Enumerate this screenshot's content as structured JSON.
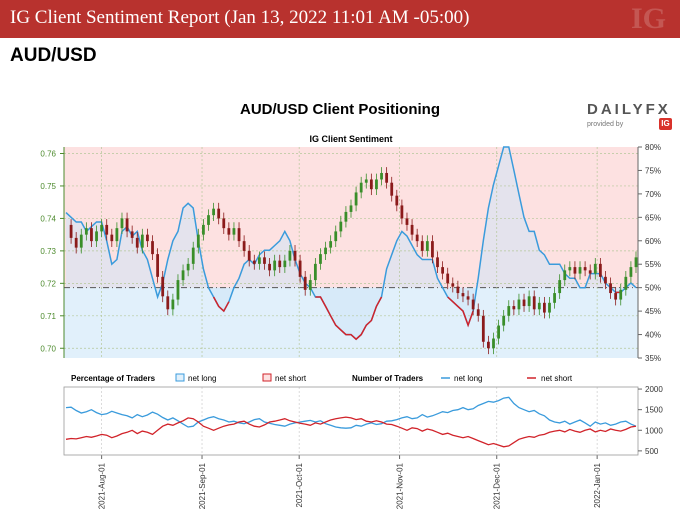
{
  "header": {
    "title": "IG Client Sentiment Report (Jan 13, 2022 11:01 AM -05:00)",
    "pair": "AUD/USD"
  },
  "logo": {
    "brand": "DAILYFX",
    "provided_by": "provided by",
    "ig": "IG"
  },
  "chart_data": [
    {
      "type": "line",
      "title": "AUD/USD Client Positioning",
      "subtitle": "IG Client Sentiment",
      "price_axis": {
        "ylim": [
          0.697,
          0.762
        ],
        "ticks": [
          "0.70",
          "0.71",
          "0.72",
          "0.73",
          "0.74",
          "0.75",
          "0.76"
        ]
      },
      "pct_axis": {
        "ylim": [
          35,
          80
        ],
        "ticks": [
          "35%",
          "40%",
          "45%",
          "50%",
          "55%",
          "60%",
          "65%",
          "70%",
          "75%",
          "80%"
        ]
      },
      "x_ticks": [
        "2021-Aug-01",
        "2021-Sep-01",
        "2021-Oct-01",
        "2021-Nov-01",
        "2021-Dec-01",
        "2022-Jan-01"
      ],
      "x_range": [
        "2021-07-21",
        "2022-01-13"
      ],
      "series": [
        {
          "name": "AUD/USD",
          "kind": "candlestick",
          "values": [
            0.738,
            0.734,
            0.731,
            0.735,
            0.737,
            0.733,
            0.736,
            0.738,
            0.735,
            0.733,
            0.737,
            0.74,
            0.736,
            0.734,
            0.731,
            0.735,
            0.733,
            0.729,
            0.722,
            0.716,
            0.712,
            0.715,
            0.721,
            0.724,
            0.726,
            0.731,
            0.735,
            0.738,
            0.741,
            0.743,
            0.74,
            0.737,
            0.735,
            0.737,
            0.733,
            0.73,
            0.727,
            0.726,
            0.728,
            0.726,
            0.724,
            0.727,
            0.725,
            0.727,
            0.73,
            0.727,
            0.722,
            0.718,
            0.721,
            0.726,
            0.729,
            0.731,
            0.733,
            0.736,
            0.739,
            0.742,
            0.744,
            0.748,
            0.751,
            0.752,
            0.749,
            0.752,
            0.754,
            0.751,
            0.747,
            0.744,
            0.74,
            0.738,
            0.735,
            0.733,
            0.73,
            0.733,
            0.728,
            0.725,
            0.723,
            0.72,
            0.719,
            0.717,
            0.716,
            0.715,
            0.712,
            0.71,
            0.702,
            0.7,
            0.703,
            0.707,
            0.71,
            0.713,
            0.712,
            0.715,
            0.713,
            0.716,
            0.712,
            0.714,
            0.711,
            0.714,
            0.717,
            0.721,
            0.724,
            0.725,
            0.723,
            0.725,
            0.724,
            0.723,
            0.726,
            0.722,
            0.72,
            0.717,
            0.715,
            0.718,
            0.722,
            0.725,
            0.728
          ]
        },
        {
          "name": "net long",
          "kind": "percent",
          "values": [
            66,
            65,
            64,
            64,
            62,
            63,
            64,
            64,
            60,
            55,
            56,
            62,
            63,
            61,
            62,
            58,
            56,
            52,
            48,
            51,
            56,
            60,
            62,
            67,
            68,
            67,
            60,
            54,
            50,
            48,
            46,
            45,
            47,
            50,
            52,
            55,
            56,
            55,
            57,
            58,
            58,
            59,
            60,
            62,
            60,
            56,
            53,
            51,
            50,
            48,
            48,
            46,
            44,
            42,
            41,
            40,
            40,
            39,
            40,
            42,
            43,
            46,
            48,
            54,
            57,
            60,
            62,
            61,
            59,
            57,
            56,
            56,
            56,
            52,
            50,
            48,
            47,
            46,
            45,
            42,
            45,
            52,
            60,
            67,
            72,
            76,
            80,
            80,
            75,
            70,
            65,
            62,
            62,
            58,
            57,
            55,
            55,
            55,
            53,
            52,
            52,
            50,
            50,
            53,
            53,
            53,
            51,
            50,
            49,
            49,
            50,
            51,
            50
          ]
        },
        {
          "name": "net short",
          "kind": "percent",
          "values": [
            34,
            35,
            36,
            36,
            38,
            37,
            36,
            36,
            40,
            45,
            44,
            38,
            37,
            39,
            38,
            42,
            44,
            48,
            52,
            49,
            44,
            40,
            38,
            33,
            32,
            33,
            40,
            46,
            50,
            52,
            54,
            55,
            53,
            50,
            48,
            45,
            44,
            45,
            43,
            42,
            42,
            41,
            40,
            38,
            40,
            44,
            47,
            49,
            50,
            52,
            52,
            54,
            56,
            58,
            59,
            60,
            60,
            61,
            60,
            58,
            57,
            54,
            52,
            46,
            43,
            40,
            38,
            39,
            41,
            43,
            44,
            44,
            44,
            48,
            50,
            52,
            53,
            54,
            55,
            58,
            55,
            48,
            40,
            33,
            28,
            24,
            20,
            20,
            25,
            30,
            35,
            38,
            38,
            42,
            43,
            45,
            45,
            45,
            47,
            48,
            48,
            50,
            50,
            47,
            47,
            47,
            49,
            50,
            51,
            51,
            50,
            49,
            50
          ]
        }
      ],
      "reference_line_pct": 50
    },
    {
      "type": "line",
      "legend": {
        "pct_label": "Percentage of Traders",
        "net_long": "net long",
        "net_short": "net short",
        "num_label": "Number of Traders"
      },
      "y_ticks": [
        "500",
        "1000",
        "1500",
        "2000"
      ],
      "ylim": [
        400,
        2050
      ],
      "series": [
        {
          "name": "net long",
          "values": [
            1550,
            1560,
            1480,
            1420,
            1450,
            1500,
            1430,
            1380,
            1400,
            1460,
            1420,
            1380,
            1350,
            1300,
            1380,
            1330,
            1370,
            1440,
            1390,
            1310,
            1250,
            1300,
            1230,
            1150,
            1080,
            1100,
            1200,
            1250,
            1300,
            1330,
            1280,
            1250,
            1200,
            1220,
            1180,
            1160,
            1200,
            1260,
            1280,
            1200,
            1170,
            1140,
            1120,
            1100,
            1150,
            1180,
            1200,
            1220,
            1240,
            1200,
            1230,
            1160,
            1120,
            1080,
            1060,
            1050,
            1060,
            1120,
            1100,
            1150,
            1180,
            1140,
            1160,
            1220,
            1230,
            1260,
            1300,
            1330,
            1280,
            1300,
            1380,
            1320,
            1350,
            1400,
            1450,
            1430,
            1480,
            1500,
            1550,
            1500,
            1520,
            1600,
            1650,
            1700,
            1680,
            1720,
            1780,
            1800,
            1650,
            1550,
            1500,
            1450,
            1480,
            1400,
            1350,
            1250,
            1200,
            1180,
            1220,
            1150,
            1200,
            1250,
            1180,
            1100,
            1200,
            1150,
            1180,
            1120,
            1150,
            1200,
            1220,
            1150,
            1100
          ]
        },
        {
          "name": "net short",
          "values": [
            780,
            800,
            790,
            820,
            850,
            830,
            860,
            900,
            880,
            820,
            860,
            920,
            950,
            1000,
            920,
            980,
            950,
            900,
            1000,
            1100,
            1150,
            1120,
            1180,
            1230,
            1300,
            1280,
            1200,
            1100,
            1050,
            1000,
            1050,
            1100,
            1130,
            1150,
            1200,
            1220,
            1150,
            1100,
            1080,
            1130,
            1200,
            1220,
            1250,
            1280,
            1230,
            1200,
            1170,
            1150,
            1120,
            1180,
            1150,
            1200,
            1250,
            1280,
            1300,
            1320,
            1300,
            1260,
            1280,
            1220,
            1200,
            1230,
            1200,
            1150,
            1140,
            1100,
            1050,
            1000,
            1060,
            1040,
            980,
            1030,
            1000,
            950,
            900,
            930,
            880,
            850,
            820,
            850,
            800,
            750,
            700,
            650,
            680,
            640,
            600,
            620,
            700,
            780,
            820,
            850,
            830,
            880,
            900,
            950,
            980,
            1000,
            960,
            1020,
            980,
            950,
            1000,
            1030,
            960,
            1000,
            970,
            1030,
            1000,
            980,
            1020,
            1080,
            1100
          ]
        }
      ]
    }
  ]
}
